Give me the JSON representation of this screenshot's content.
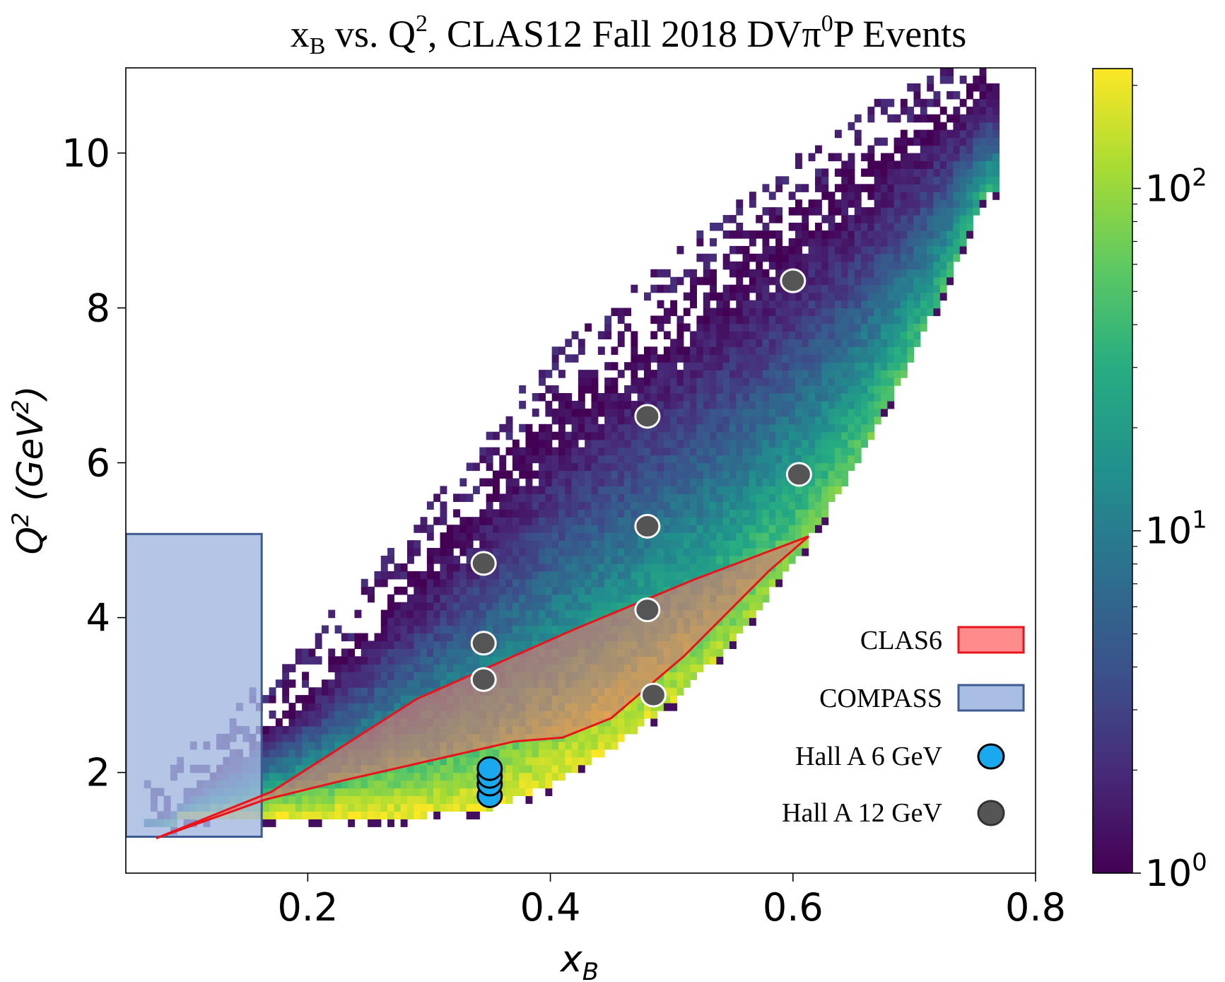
{
  "chart_data": {
    "type": "heatmap",
    "title": {
      "text_1": "x",
      "text_1_sub": "B",
      "text_2": " vs. Q",
      "text_2_sup": "2",
      "text_3": ", CLAS12 Fall 2018 DVπ",
      "text_3_sup": "0",
      "text_4": "P Events"
    },
    "xlabel": {
      "main": "x",
      "sub": "B"
    },
    "ylabel": {
      "main": "Q",
      "sup": "2",
      "rest": " (GeV",
      "rest_sup": "2",
      "close": ")"
    },
    "xlim": [
      0.05,
      0.8
    ],
    "ylim": [
      0.7,
      11.1
    ],
    "xticks": [
      {
        "value": 0.2,
        "label": "0.2"
      },
      {
        "value": 0.4,
        "label": "0.4"
      },
      {
        "value": 0.6,
        "label": "0.6"
      },
      {
        "value": 0.8,
        "label": "0.8"
      }
    ],
    "yticks": [
      {
        "value": 2,
        "label": "2"
      },
      {
        "value": 4,
        "label": "4"
      },
      {
        "value": 6,
        "label": "6"
      },
      {
        "value": 8,
        "label": "8"
      },
      {
        "value": 10,
        "label": "10"
      }
    ],
    "colorbar": {
      "scale": "log",
      "colormap": "viridis",
      "min_log": 0,
      "max_log": 2.35,
      "ticks": [
        {
          "log": 0,
          "base": "10",
          "exp": "0"
        },
        {
          "log": 1,
          "base": "10",
          "exp": "1"
        },
        {
          "log": 2,
          "base": "10",
          "exp": "2"
        }
      ]
    },
    "heatmap_region": {
      "description_free": true,
      "bins_x": 130,
      "bins_y": 100,
      "q2_min": 1.45,
      "upper_boundary": [
        [
          0.07,
          1.3
        ],
        [
          0.2,
          3.1
        ],
        [
          0.3,
          4.9
        ],
        [
          0.4,
          6.8
        ],
        [
          0.5,
          8.1
        ],
        [
          0.6,
          9.3
        ],
        [
          0.7,
          10.4
        ],
        [
          0.76,
          11.0
        ]
      ],
      "lower_boundary": [
        [
          0.07,
          1.3
        ],
        [
          0.3,
          1.45
        ],
        [
          0.35,
          1.55
        ],
        [
          0.4,
          1.85
        ],
        [
          0.45,
          2.3
        ],
        [
          0.5,
          2.9
        ],
        [
          0.55,
          3.7
        ],
        [
          0.6,
          4.7
        ],
        [
          0.65,
          5.9
        ],
        [
          0.7,
          7.4
        ],
        [
          0.76,
          9.5
        ]
      ]
    },
    "series": [
      {
        "name": "CLAS6",
        "kind": "polygon",
        "fill": "#ff6f6f",
        "stroke": "#e8141b",
        "points": [
          [
            0.075,
            1.15
          ],
          [
            0.17,
            1.75
          ],
          [
            0.29,
            2.95
          ],
          [
            0.42,
            3.85
          ],
          [
            0.52,
            4.5
          ],
          [
            0.613,
            5.05
          ],
          [
            0.58,
            4.6
          ],
          [
            0.51,
            3.5
          ],
          [
            0.45,
            2.7
          ],
          [
            0.41,
            2.45
          ],
          [
            0.37,
            2.4
          ],
          [
            0.23,
            1.9
          ],
          [
            0.165,
            1.65
          ],
          [
            0.075,
            1.15
          ]
        ]
      },
      {
        "name": "COMPASS",
        "kind": "rectangle",
        "fill": "#a1b6e0",
        "stroke": "#3d5b90",
        "x_range": [
          0.05,
          0.162
        ],
        "y_range": [
          1.17,
          5.08
        ]
      },
      {
        "name": "Hall A 6 GeV",
        "kind": "points",
        "color": "#1aa8ee",
        "edge": "#000000",
        "x": [
          0.35,
          0.35,
          0.35,
          0.35
        ],
        "y": [
          1.7,
          1.85,
          1.95,
          2.05
        ]
      },
      {
        "name": "Hall A 12 GeV",
        "kind": "points",
        "color": "#555555",
        "edge": "#ffffff",
        "x": [
          0.6,
          0.48,
          0.605,
          0.48,
          0.345,
          0.48,
          0.345,
          0.345,
          0.485
        ],
        "y": [
          8.35,
          6.6,
          5.85,
          5.18,
          4.7,
          4.1,
          3.67,
          3.2,
          3.0
        ]
      }
    ],
    "legend": {
      "placement": "lower-right",
      "entries": [
        {
          "label": "CLAS6",
          "marker": "patch",
          "fill": "#ff8080",
          "stroke": "#e8141b"
        },
        {
          "label": "COMPASS",
          "marker": "patch",
          "fill": "#a1b6e0",
          "stroke": "#3d5b90"
        },
        {
          "label": "Hall A 6 GeV",
          "marker": "circle",
          "fill": "#1aa8ee",
          "stroke": "#000000"
        },
        {
          "label": "Hall A 12 GeV",
          "marker": "circle",
          "fill": "#555555",
          "stroke": "#333333"
        }
      ]
    }
  }
}
